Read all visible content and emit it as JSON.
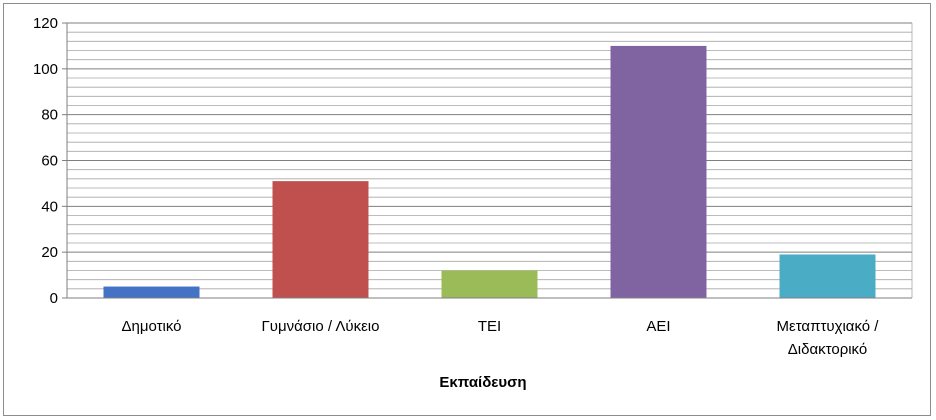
{
  "chart_data": {
    "type": "bar",
    "categories": [
      "Δημοτικό",
      "Γυμνάσιο / Λύκειο",
      "ΤΕΙ",
      "ΑΕΙ",
      "Μεταπτυχιακό / Διδακτορικό"
    ],
    "category_lines": [
      [
        "Δημοτικό"
      ],
      [
        "Γυμνάσιο / Λύκειο"
      ],
      [
        "ΤΕΙ"
      ],
      [
        "ΑΕΙ"
      ],
      [
        "Μεταπτυχιακό /",
        "Διδακτορικό"
      ]
    ],
    "values": [
      5,
      51,
      12,
      110,
      19
    ],
    "colors": [
      "#4472C4",
      "#C0504D",
      "#9BBB59",
      "#8064A2",
      "#4BACC6"
    ],
    "title": "",
    "xlabel": "Εκπαίδευση",
    "ylabel": "",
    "ylim": [
      0,
      120
    ],
    "yticks": [
      0,
      20,
      40,
      60,
      80,
      100,
      120
    ],
    "minor_grid_step": 4,
    "grid": true,
    "legend": "none"
  }
}
